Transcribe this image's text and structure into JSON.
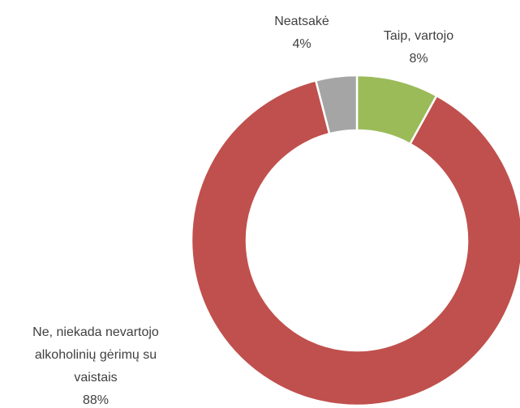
{
  "chart_data": {
    "type": "donut",
    "categories": [
      "Taip, vartojo",
      "Ne, niekada nevartojo alkoholinių gėrimų su vaistais",
      "Neatsakė"
    ],
    "values": [
      8,
      88,
      4
    ],
    "value_labels": [
      "8%",
      "88%",
      "4%"
    ],
    "colors": [
      "#9bbb59",
      "#c0504d",
      "#a5a5a5"
    ]
  }
}
